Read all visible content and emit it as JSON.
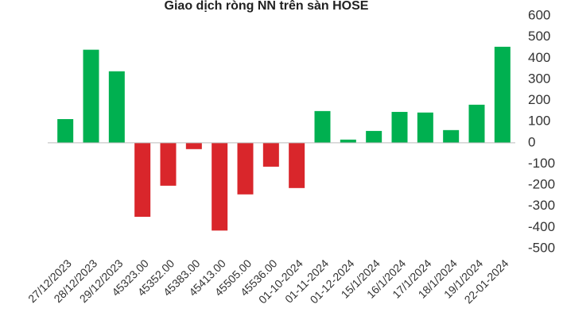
{
  "chart_data": {
    "type": "bar",
    "title": "Giao dịch ròng NN trên sàn HOSE",
    "categories": [
      "27/12/2023",
      "28/12/2023",
      "29/12/2023",
      "45323.00",
      "45352.00",
      "45383.00",
      "45413.00",
      "45505.00",
      "45536.00",
      "01-10-2024",
      "01-11-2024",
      "01-12-2024",
      "15/1/2024",
      "16/1/2024",
      "17/1/2024",
      "18/1/2024",
      "19/1/2024",
      "22-01-2024"
    ],
    "values": [
      112,
      440,
      338,
      -350,
      -203,
      -30,
      -415,
      -244,
      -113,
      -214,
      150,
      15,
      56,
      146,
      143,
      60,
      180,
      454
    ],
    "positive_color": "#00b050",
    "negative_color": "#d9262b",
    "ylim": [
      -500,
      600
    ],
    "yticks": [
      -500,
      -400,
      -300,
      -200,
      -100,
      0,
      100,
      200,
      300,
      400,
      500,
      600
    ],
    "y_axis_side": "right"
  }
}
